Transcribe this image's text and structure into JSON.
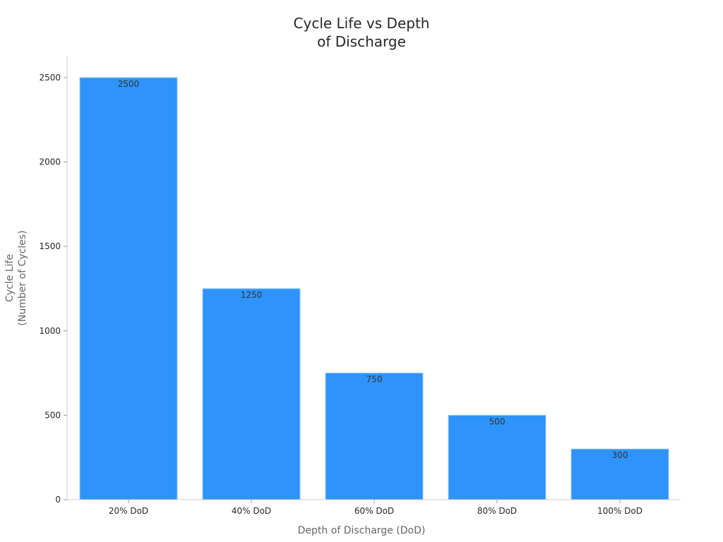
{
  "chart_data": {
    "type": "bar",
    "title_lines": [
      "Cycle Life vs Depth",
      "of Discharge"
    ],
    "xlabel": "Depth of Discharge (DoD)",
    "ylabel_lines": [
      "Cycle Life",
      "(Number of Cycles)"
    ],
    "categories": [
      "20% DoD",
      "40% DoD",
      "60% DoD",
      "80% DoD",
      "100% DoD"
    ],
    "values": [
      2500,
      1250,
      750,
      500,
      300
    ],
    "data_labels": [
      "2500",
      "1250",
      "750",
      "500",
      "300"
    ],
    "ylim": [
      0,
      2625
    ],
    "yticks": [
      0,
      500,
      1000,
      1500,
      2000,
      2500
    ],
    "ytick_labels": [
      "0",
      "500",
      "1000",
      "1500",
      "2000",
      "2500"
    ],
    "bar_color": "#2e93fa",
    "bar_edge_color": "#9ccaf7",
    "grid": false,
    "legend": "none"
  }
}
